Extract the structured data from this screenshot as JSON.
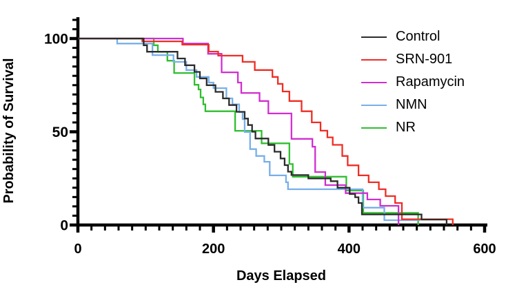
{
  "chart_data": {
    "type": "line",
    "variant": "kaplan-meier-step",
    "title": "",
    "xlabel": "Days Elapsed",
    "ylabel": "Probability of Survival",
    "xlim": [
      0,
      600
    ],
    "ylim": [
      0,
      100
    ],
    "x_major_ticks": [
      0,
      200,
      400,
      600
    ],
    "x_minor_step": 20,
    "y_major_ticks": [
      0,
      50,
      100
    ],
    "y_minor_step": 5,
    "y_minor_tick_max": 110,
    "grid": false,
    "legend_position": "top-right",
    "series": [
      {
        "name": "Control",
        "color": "#2b2b2b",
        "points": [
          [
            0,
            100
          ],
          [
            97,
            96.4
          ],
          [
            102,
            92.9
          ],
          [
            147,
            89.3
          ],
          [
            158,
            85.7
          ],
          [
            172,
            82.1
          ],
          [
            180,
            78.6
          ],
          [
            190,
            75
          ],
          [
            203,
            71.4
          ],
          [
            214,
            67.9
          ],
          [
            223,
            64.3
          ],
          [
            234,
            60.7
          ],
          [
            246,
            57.1
          ],
          [
            251,
            53.6
          ],
          [
            257,
            50
          ],
          [
            262,
            46.4
          ],
          [
            281,
            42.9
          ],
          [
            290,
            39.3
          ],
          [
            299,
            35.7
          ],
          [
            305,
            32.1
          ],
          [
            310,
            28.6
          ],
          [
            315,
            26.8
          ],
          [
            340,
            25
          ],
          [
            373,
            23.5
          ],
          [
            383,
            20
          ],
          [
            401,
            16.6
          ],
          [
            409,
            14.9
          ],
          [
            414,
            11.8
          ],
          [
            419,
            5.7
          ],
          [
            507,
            2.9
          ],
          [
            544,
            0
          ]
        ]
      },
      {
        "name": "SRN-901",
        "color": "#ee2d24",
        "points": [
          [
            0,
            100
          ],
          [
            95,
            98.5
          ],
          [
            154,
            96.7
          ],
          [
            193,
            93
          ],
          [
            207,
            90.8
          ],
          [
            243,
            87.5
          ],
          [
            261,
            83.1
          ],
          [
            287,
            79.4
          ],
          [
            295,
            75.7
          ],
          [
            302,
            71.6
          ],
          [
            312,
            66.5
          ],
          [
            330,
            61
          ],
          [
            345,
            55
          ],
          [
            358,
            50.6
          ],
          [
            368,
            47
          ],
          [
            376,
            43
          ],
          [
            390,
            37
          ],
          [
            398,
            32
          ],
          [
            414,
            26.6
          ],
          [
            429,
            22.9
          ],
          [
            444,
            19.2
          ],
          [
            454,
            15.5
          ],
          [
            468,
            11.8
          ],
          [
            478,
            3.1
          ],
          [
            553,
            0
          ]
        ]
      },
      {
        "name": "Rapamycin",
        "color": "#cf2fcf",
        "points": [
          [
            0,
            100
          ],
          [
            155,
            97.3
          ],
          [
            192,
            91.8
          ],
          [
            212,
            81.9
          ],
          [
            236,
            76.4
          ],
          [
            241,
            70.8
          ],
          [
            268,
            66.5
          ],
          [
            281,
            59.8
          ],
          [
            315,
            46.2
          ],
          [
            346,
            42
          ],
          [
            350,
            28.4
          ],
          [
            365,
            21.4
          ],
          [
            395,
            17.1
          ],
          [
            427,
            13.7
          ],
          [
            446,
            10.3
          ],
          [
            473,
            0
          ]
        ]
      },
      {
        "name": "NMN",
        "color": "#77afea",
        "points": [
          [
            0,
            100
          ],
          [
            58,
            97.3
          ],
          [
            110,
            91.1
          ],
          [
            141,
            87.5
          ],
          [
            160,
            83.1
          ],
          [
            175,
            79.4
          ],
          [
            193,
            76.4
          ],
          [
            200,
            73.4
          ],
          [
            219,
            67.9
          ],
          [
            228,
            64.7
          ],
          [
            238,
            60.5
          ],
          [
            243,
            56.8
          ],
          [
            246,
            49.9
          ],
          [
            254,
            40.7
          ],
          [
            263,
            37
          ],
          [
            275,
            33.9
          ],
          [
            283,
            26.6
          ],
          [
            307,
            22.9
          ],
          [
            310,
            19.2
          ],
          [
            420,
            9.3
          ],
          [
            452,
            2.6
          ],
          [
            505,
            2.6
          ]
        ]
      },
      {
        "name": "NR",
        "color": "#2fbe2f",
        "points": [
          [
            0,
            100
          ],
          [
            112,
            96.4
          ],
          [
            118,
            92.9
          ],
          [
            132,
            88.1
          ],
          [
            142,
            81.5
          ],
          [
            172,
            75.2
          ],
          [
            178,
            72.7
          ],
          [
            181,
            68.4
          ],
          [
            185,
            64.7
          ],
          [
            188,
            61
          ],
          [
            232,
            50.5
          ],
          [
            271,
            43.8
          ],
          [
            312,
            32.7
          ],
          [
            317,
            25.9
          ],
          [
            396,
            18.5
          ],
          [
            421,
            6.5
          ],
          [
            502,
            0
          ]
        ]
      }
    ]
  }
}
